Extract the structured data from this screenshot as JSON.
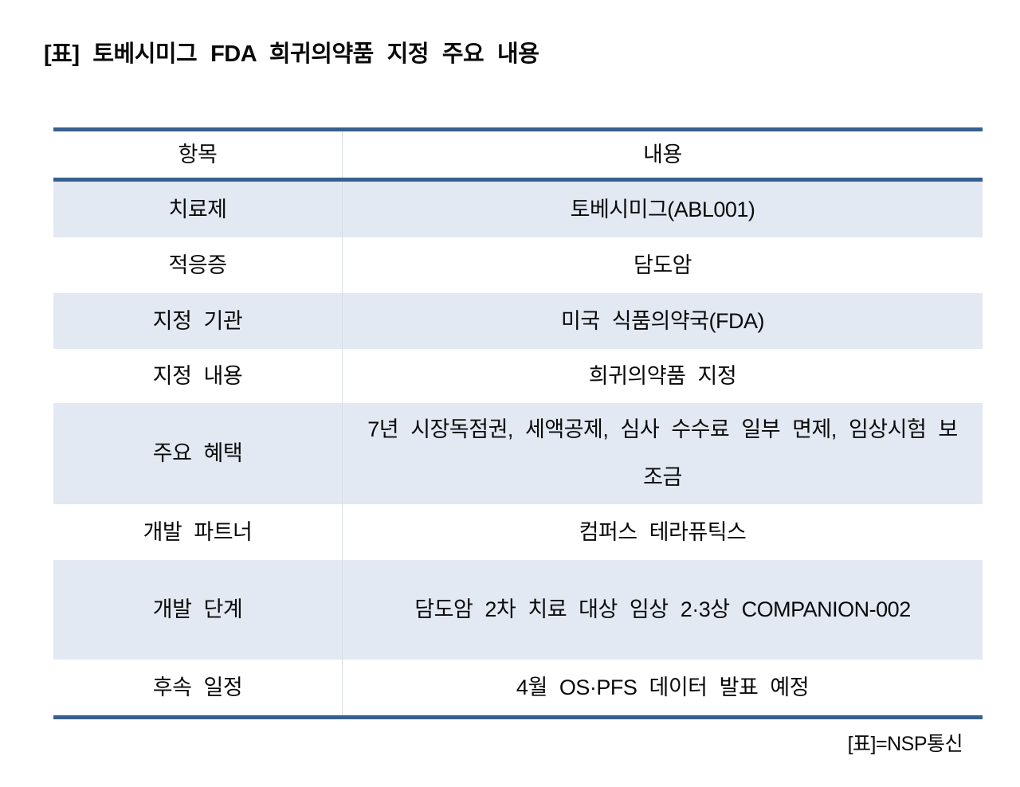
{
  "page": {
    "title": "[표] 토베시미그 FDA 희귀의약품 지정 주요 내용",
    "credit": "[표]=NSP통신"
  },
  "colors": {
    "border_blue": "#36608F",
    "row_stripe": "#E2E9F3",
    "column_divider": "#D9DEE6",
    "text": "#0A0A0A"
  },
  "table": {
    "columns": [
      "항목",
      "내용"
    ],
    "rows": [
      {
        "label": "치료제",
        "value": "토베시미그(ABL001)"
      },
      {
        "label": "적응증",
        "value": "담도암"
      },
      {
        "label": "지정 기관",
        "value": "미국 식품의약국(FDA)"
      },
      {
        "label": "지정 내용",
        "value": "희귀의약품 지정"
      },
      {
        "label": "주요 혜택",
        "value": "7년 시장독점권, 세액공제, 심사 수수료 일부 면제, 임상시험 보조금"
      },
      {
        "label": "개발 파트너",
        "value": "컴퍼스 테라퓨틱스"
      },
      {
        "label": "개발 단계",
        "value": "담도암 2차 치료 대상 임상 2·3상 COMPANION-002"
      },
      {
        "label": "후속 일정",
        "value": "4월 OS·PFS 데이터 발표 예정"
      }
    ]
  },
  "chart_data": {
    "type": "table",
    "title": "[표] 토베시미그 FDA 희귀의약품 지정 주요 내용",
    "columns": [
      "항목",
      "내용"
    ],
    "rows": [
      [
        "치료제",
        "토베시미그(ABL001)"
      ],
      [
        "적응증",
        "담도암"
      ],
      [
        "지정 기관",
        "미국 식품의약국(FDA)"
      ],
      [
        "지정 내용",
        "희귀의약품 지정"
      ],
      [
        "주요 혜택",
        "7년 시장독점권, 세액공제, 심사 수수료 일부 면제, 임상시험 보조금"
      ],
      [
        "개발 파트너",
        "컴퍼스 테라퓨틱스"
      ],
      [
        "개발 단계",
        "담도암 2차 치료 대상 임상 2·3상 COMPANION-002"
      ],
      [
        "후속 일정",
        "4월 OS·PFS 데이터 발표 예정"
      ]
    ],
    "source": "[표]=NSP통신",
    "layout": {
      "stripe_rows": [
        0,
        2,
        4,
        6
      ],
      "header_background": "#ffffff"
    }
  }
}
